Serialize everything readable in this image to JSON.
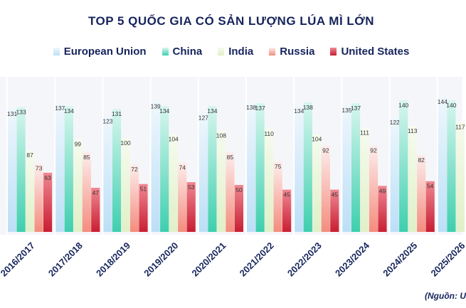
{
  "chart_data": {
    "type": "bar",
    "title": "TOP 5 QUỐC GIA CÓ SẢN LƯỢNG LÚA MÌ LỚN",
    "categories": [
      "2016/2017",
      "2017/2018",
      "2018/2019",
      "2019/2020",
      "2020/2021",
      "2021/2022",
      "2022/2023",
      "2023/2024",
      "2024/2025",
      "2025/2026"
    ],
    "series": [
      {
        "name": "European Union",
        "values": [
          131,
          137,
          123,
          139,
          127,
          138,
          134,
          135,
          122,
          144
        ]
      },
      {
        "name": "China",
        "values": [
          133,
          134,
          131,
          134,
          134,
          137,
          138,
          137,
          140,
          140
        ]
      },
      {
        "name": "India",
        "values": [
          87,
          99,
          100,
          104,
          108,
          110,
          104,
          111,
          113,
          117
        ]
      },
      {
        "name": "Russia",
        "values": [
          73,
          85,
          72,
          74,
          85,
          75,
          92,
          92,
          82,
          null
        ]
      },
      {
        "name": "United States",
        "values": [
          63,
          47,
          51,
          53,
          50,
          45,
          45,
          49,
          54,
          null
        ]
      }
    ],
    "legend_position": "top",
    "grid": true,
    "colors": {
      "European Union": [
        "#eef7fd",
        "#bcdff6"
      ],
      "China": [
        "#d8f6ee",
        "#3ecfae"
      ],
      "India": [
        "#f6fbee",
        "#e0f0c8"
      ],
      "Russia": [
        "#fdeeec",
        "#f48c7e"
      ],
      "United States": [
        "#f08892",
        "#c81e32"
      ]
    },
    "source_note": "(Nguồn: U"
  }
}
